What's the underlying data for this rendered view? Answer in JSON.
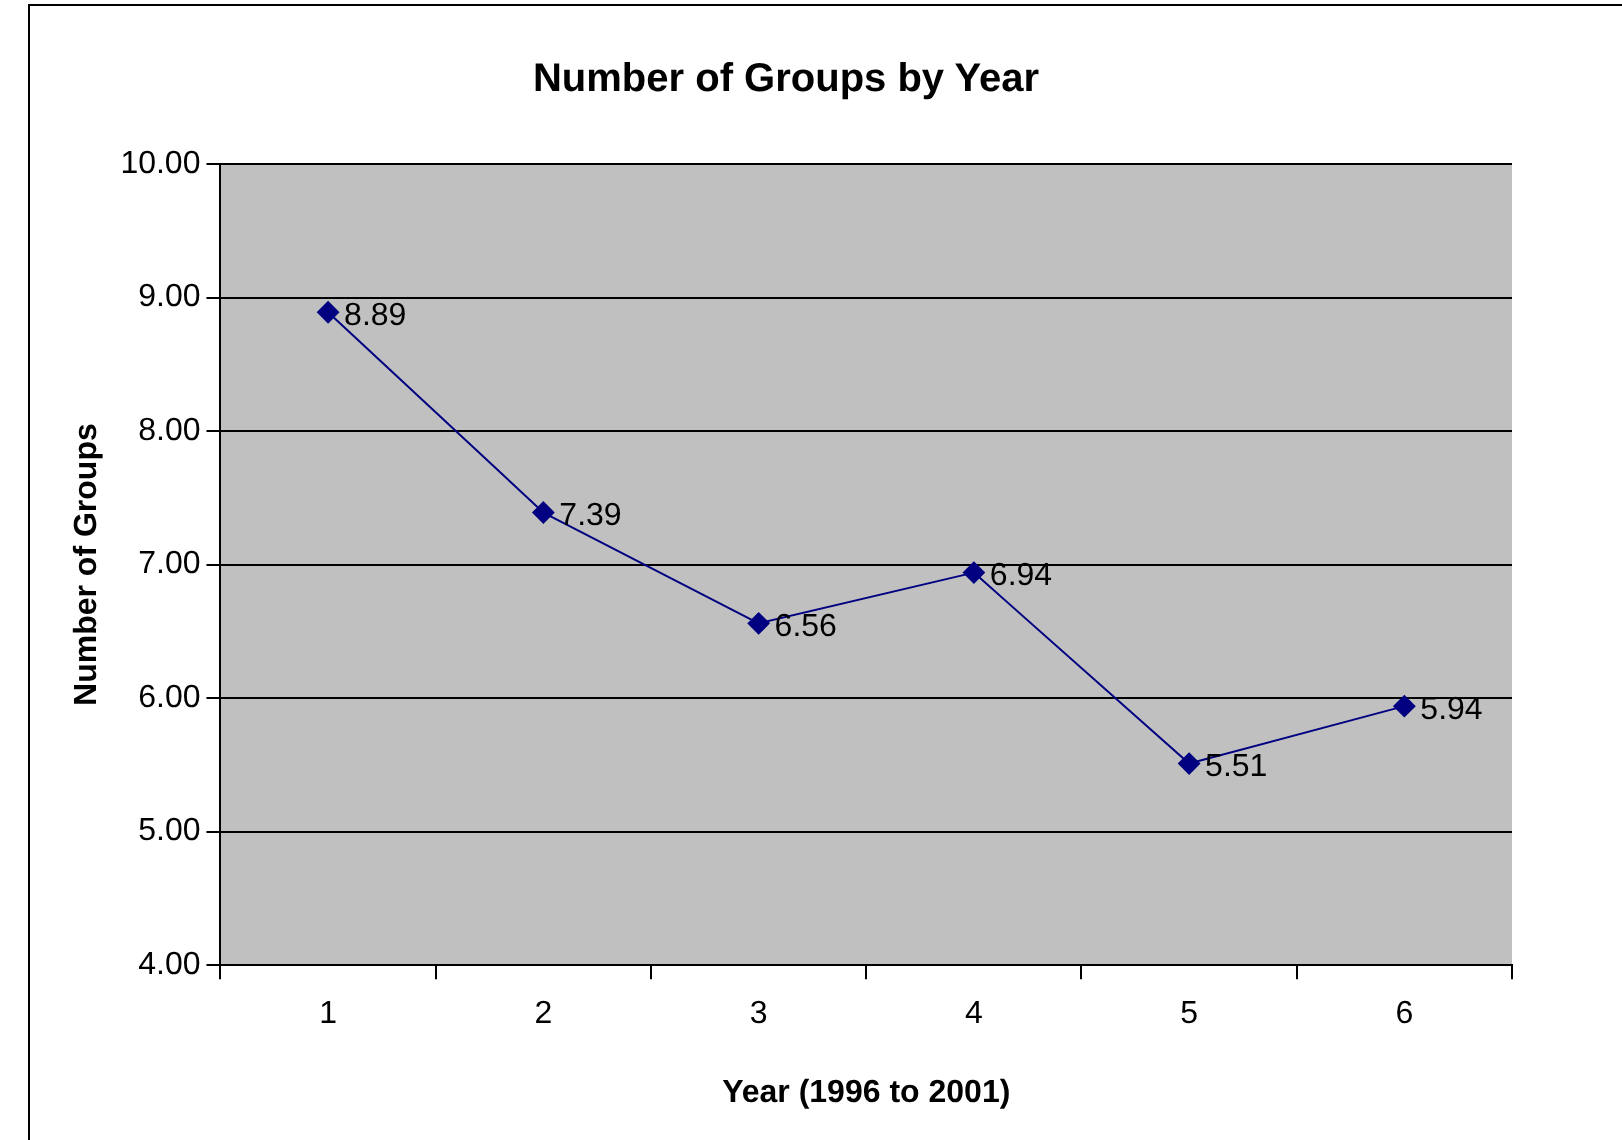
{
  "chart_data": {
    "type": "line",
    "title": "Number of Groups by Year",
    "xlabel": "Year (1996 to 2001)",
    "ylabel": "Number of Groups",
    "categories": [
      "1",
      "2",
      "3",
      "4",
      "5",
      "6"
    ],
    "series": [
      {
        "color": "#000080",
        "values": [
          8.89,
          7.39,
          6.56,
          6.94,
          5.51,
          5.94
        ]
      }
    ],
    "ylim": [
      4,
      10
    ],
    "yticks": [
      {
        "value": 4,
        "label": "4.00"
      },
      {
        "value": 5,
        "label": "5.00"
      },
      {
        "value": 6,
        "label": "6.00"
      },
      {
        "value": 7,
        "label": "7.00"
      },
      {
        "value": 8,
        "label": "8.00"
      },
      {
        "value": 9,
        "label": "9.00"
      },
      {
        "value": 10,
        "label": "10.00"
      }
    ],
    "grid": "y",
    "legend": false,
    "marker": "diamond",
    "line_style": "solid",
    "data_labels": true
  }
}
